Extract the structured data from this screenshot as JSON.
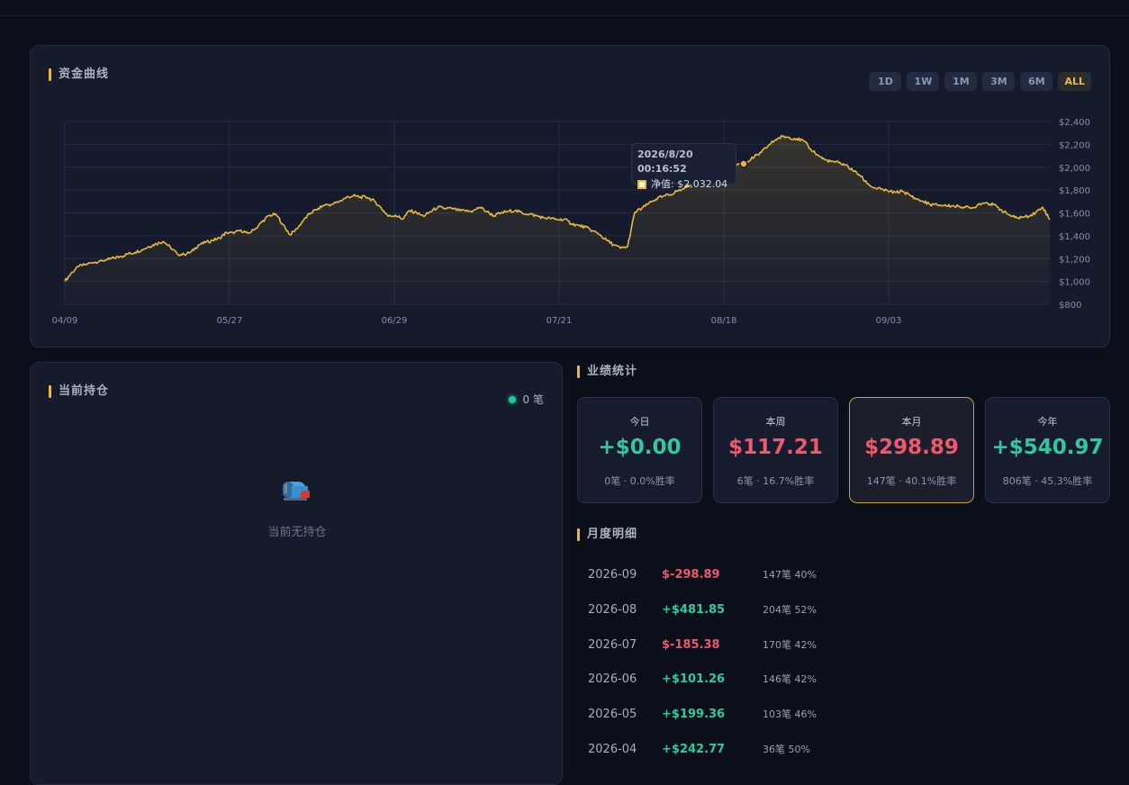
{
  "equity": {
    "title": "资金曲线",
    "ranges": [
      {
        "label": "1D",
        "active": false
      },
      {
        "label": "1W",
        "active": false
      },
      {
        "label": "1M",
        "active": false
      },
      {
        "label": "3M",
        "active": false
      },
      {
        "label": "6M",
        "active": false
      },
      {
        "label": "ALL",
        "active": true
      }
    ],
    "tooltip": {
      "time": "2026/8/20 00:16:52",
      "label": "净值: $2,032.04"
    }
  },
  "chart_data": {
    "type": "area",
    "series": [
      {
        "color": "#e6b93a"
      }
    ],
    "x_ticks": [
      "04/09",
      "05/27",
      "06/29",
      "07/21",
      "08/18",
      "09/03"
    ],
    "y_ticks": [
      "$800",
      "$1,000",
      "$1,200",
      "$1,400",
      "$1,600",
      "$1,800",
      "$2,000",
      "$2,200",
      "$2,400"
    ],
    "ylim": [
      800,
      2400
    ],
    "grid": true,
    "y_axis_position": "right",
    "points": [
      [
        0,
        1000
      ],
      [
        1,
        1080
      ],
      [
        2,
        1130
      ],
      [
        3,
        1150
      ],
      [
        4,
        1165
      ],
      [
        5,
        1180
      ],
      [
        6,
        1190
      ],
      [
        7,
        1205
      ],
      [
        8,
        1220
      ],
      [
        9,
        1240
      ],
      [
        10,
        1255
      ],
      [
        11,
        1280
      ],
      [
        12,
        1305
      ],
      [
        13,
        1330
      ],
      [
        14,
        1350
      ],
      [
        15,
        1300
      ],
      [
        16,
        1240
      ],
      [
        17,
        1235
      ],
      [
        18,
        1260
      ],
      [
        19,
        1320
      ],
      [
        20,
        1340
      ],
      [
        21,
        1360
      ],
      [
        22,
        1380
      ],
      [
        23,
        1430
      ],
      [
        24,
        1420
      ],
      [
        25,
        1450
      ],
      [
        26,
        1420
      ],
      [
        27,
        1455
      ],
      [
        28,
        1520
      ],
      [
        29,
        1575
      ],
      [
        30,
        1590
      ],
      [
        31,
        1500
      ],
      [
        32,
        1410
      ],
      [
        33,
        1460
      ],
      [
        34,
        1545
      ],
      [
        35,
        1600
      ],
      [
        36,
        1640
      ],
      [
        37,
        1670
      ],
      [
        38,
        1675
      ],
      [
        39,
        1700
      ],
      [
        40,
        1735
      ],
      [
        41,
        1750
      ],
      [
        42,
        1740
      ],
      [
        43,
        1735
      ],
      [
        44,
        1705
      ],
      [
        45,
        1640
      ],
      [
        46,
        1570
      ],
      [
        47,
        1580
      ],
      [
        48,
        1545
      ],
      [
        49,
        1620
      ],
      [
        50,
        1600
      ],
      [
        51,
        1570
      ],
      [
        52,
        1610
      ],
      [
        53,
        1650
      ],
      [
        54,
        1640
      ],
      [
        55,
        1640
      ],
      [
        56,
        1620
      ],
      [
        57,
        1615
      ],
      [
        58,
        1615
      ],
      [
        59,
        1650
      ],
      [
        60,
        1610
      ],
      [
        61,
        1575
      ],
      [
        62,
        1600
      ],
      [
        63,
        1615
      ],
      [
        64,
        1620
      ],
      [
        65,
        1600
      ],
      [
        66,
        1590
      ],
      [
        67,
        1575
      ],
      [
        68,
        1560
      ],
      [
        69,
        1550
      ],
      [
        70,
        1540
      ],
      [
        71,
        1545
      ],
      [
        72,
        1505
      ],
      [
        73,
        1490
      ],
      [
        74,
        1475
      ],
      [
        75,
        1445
      ],
      [
        76,
        1410
      ],
      [
        77,
        1360
      ],
      [
        78,
        1320
      ],
      [
        79,
        1290
      ],
      [
        80,
        1305
      ],
      [
        81,
        1605
      ],
      [
        82,
        1640
      ],
      [
        83,
        1680
      ],
      [
        84,
        1720
      ],
      [
        85,
        1745
      ],
      [
        86,
        1760
      ],
      [
        87,
        1790
      ],
      [
        88,
        1810
      ],
      [
        89,
        1860
      ],
      [
        90,
        1920
      ],
      [
        91,
        1980
      ],
      [
        92,
        2000
      ],
      [
        93,
        1990
      ],
      [
        94,
        2010
      ],
      [
        95,
        2020
      ],
      [
        96,
        2030
      ],
      [
        97,
        2050
      ],
      [
        98,
        2090
      ],
      [
        99,
        2130
      ],
      [
        100,
        2190
      ],
      [
        101,
        2240
      ],
      [
        102,
        2270
      ],
      [
        103,
        2260
      ],
      [
        104,
        2250
      ],
      [
        105,
        2230
      ],
      [
        106,
        2160
      ],
      [
        107,
        2110
      ],
      [
        108,
        2065
      ],
      [
        109,
        2050
      ],
      [
        110,
        2040
      ],
      [
        111,
        2020
      ],
      [
        112,
        1970
      ],
      [
        113,
        1930
      ],
      [
        114,
        1860
      ],
      [
        115,
        1820
      ],
      [
        116,
        1810
      ],
      [
        117,
        1790
      ],
      [
        118,
        1780
      ],
      [
        119,
        1790
      ],
      [
        120,
        1760
      ],
      [
        121,
        1720
      ],
      [
        122,
        1700
      ],
      [
        123,
        1675
      ],
      [
        124,
        1670
      ],
      [
        125,
        1665
      ],
      [
        126,
        1660
      ],
      [
        127,
        1660
      ],
      [
        128,
        1650
      ],
      [
        129,
        1640
      ],
      [
        130,
        1680
      ],
      [
        131,
        1690
      ],
      [
        132,
        1670
      ],
      [
        133,
        1630
      ],
      [
        134,
        1590
      ],
      [
        135,
        1560
      ],
      [
        136,
        1560
      ],
      [
        137,
        1570
      ],
      [
        138,
        1605
      ],
      [
        139,
        1650
      ],
      [
        140,
        1540
      ]
    ]
  },
  "positions": {
    "title": "当前持仓",
    "count": "0 笔",
    "empty_text": "当前无持仓",
    "empty_icon": "mailbox-icon"
  },
  "performance": {
    "title": "业绩统计",
    "cards": [
      {
        "label": "今日",
        "value": "+$0.00",
        "sub": "0笔 · 0.0%胜率",
        "sign": "pos",
        "active": false
      },
      {
        "label": "本周",
        "value": "$117.21",
        "sub": "6笔 · 16.7%胜率",
        "sign": "neg",
        "active": false
      },
      {
        "label": "本月",
        "value": "$298.89",
        "sub": "147笔 · 40.1%胜率",
        "sign": "neg",
        "active": true
      },
      {
        "label": "今年",
        "value": "+$540.97",
        "sub": "806笔 · 45.3%胜率",
        "sign": "pos",
        "active": false
      }
    ]
  },
  "monthly": {
    "title": "月度明细",
    "rows": [
      {
        "month": "2026-09",
        "pnl": "$-298.89",
        "sign": "neg",
        "detail": "147笔 40%"
      },
      {
        "month": "2026-08",
        "pnl": "+$481.85",
        "sign": "pos",
        "detail": "204笔 52%"
      },
      {
        "month": "2026-07",
        "pnl": "$-185.38",
        "sign": "neg",
        "detail": "170笔 42%"
      },
      {
        "month": "2026-06",
        "pnl": "+$101.26",
        "sign": "pos",
        "detail": "146笔 42%"
      },
      {
        "month": "2026-05",
        "pnl": "+$199.36",
        "sign": "pos",
        "detail": "103笔 46%"
      },
      {
        "month": "2026-04",
        "pnl": "+$242.77",
        "sign": "pos",
        "detail": "36笔 50%"
      }
    ]
  }
}
